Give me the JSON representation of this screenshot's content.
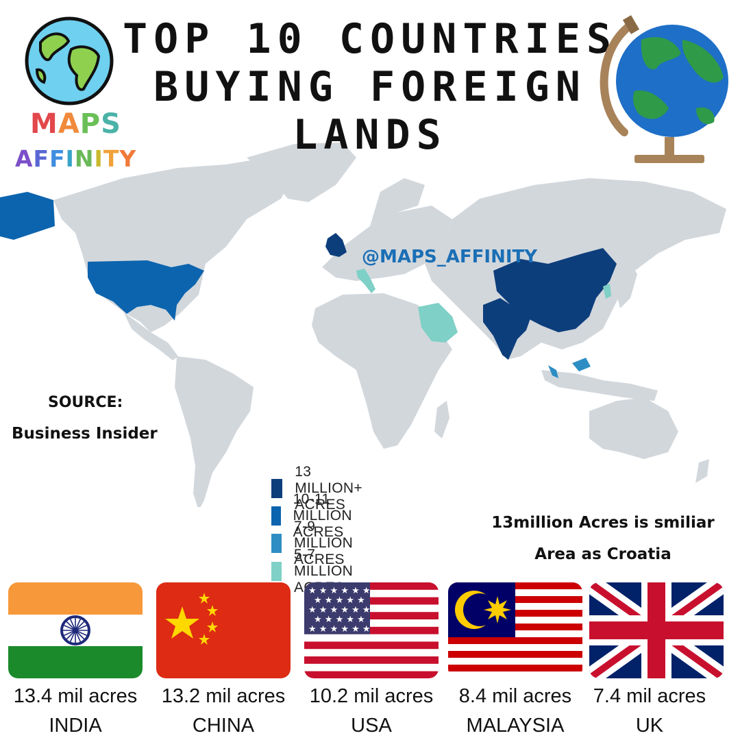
{
  "title": {
    "line1": "TOP 10 COUNTRIES",
    "line2": "BUYING FOREIGN",
    "line3": "LANDS"
  },
  "brand": {
    "word1_letters": [
      {
        "ch": "M",
        "color": "#e2474b"
      },
      {
        "ch": "A",
        "color": "#f08a3c"
      },
      {
        "ch": "P",
        "color": "#6bbf59"
      },
      {
        "ch": "S",
        "color": "#4bb3a8"
      }
    ],
    "word2_letters": [
      {
        "ch": "A",
        "color": "#7b4fc9"
      },
      {
        "ch": "F",
        "color": "#5967d4"
      },
      {
        "ch": "F",
        "color": "#3f8ee0"
      },
      {
        "ch": "I",
        "color": "#3aa3c9"
      },
      {
        "ch": "N",
        "color": "#6bb85a"
      },
      {
        "ch": "I",
        "color": "#c9b82f"
      },
      {
        "ch": "T",
        "color": "#f0a23a"
      },
      {
        "ch": "Y",
        "color": "#f07a3a"
      }
    ]
  },
  "watermark": "@MAPS_AFFINITY",
  "source": {
    "label": "SOURCE:",
    "name": "Business Insider"
  },
  "legend": [
    {
      "label": "13 MILLION+ ACRES",
      "color": "#0d3e7c"
    },
    {
      "label": "10-11 MILLION ACRES",
      "color": "#0c64ae"
    },
    {
      "label": "7-9 MILLION ACRES",
      "color": "#2e8ec4"
    },
    {
      "label": "5-7 MILLION ACRES",
      "color": "#7fd0c6"
    }
  ],
  "note": {
    "line1": "13million Acres is smiliar",
    "line2": "Area as Croatia"
  },
  "countries": [
    {
      "value": "13.4 mil acres",
      "name": "INDIA",
      "flag_icon": "india-flag-icon"
    },
    {
      "value": "13.2 mil acres",
      "name": "CHINA",
      "flag_icon": "china-flag-icon"
    },
    {
      "value": "10.2 mil acres",
      "name": "USA",
      "flag_icon": "usa-flag-icon"
    },
    {
      "value": "8.4 mil acres",
      "name": "MALAYSIA",
      "flag_icon": "malaysia-flag-icon"
    },
    {
      "value": "7.4 mil acres",
      "name": "UK",
      "flag_icon": "uk-flag-icon"
    }
  ],
  "map_colors": {
    "land": "#d2d7dc",
    "tier1": "#0d3e7c",
    "tier2": "#0c64ae",
    "tier3": "#2e8ec4",
    "tier4": "#7fd0c6"
  }
}
